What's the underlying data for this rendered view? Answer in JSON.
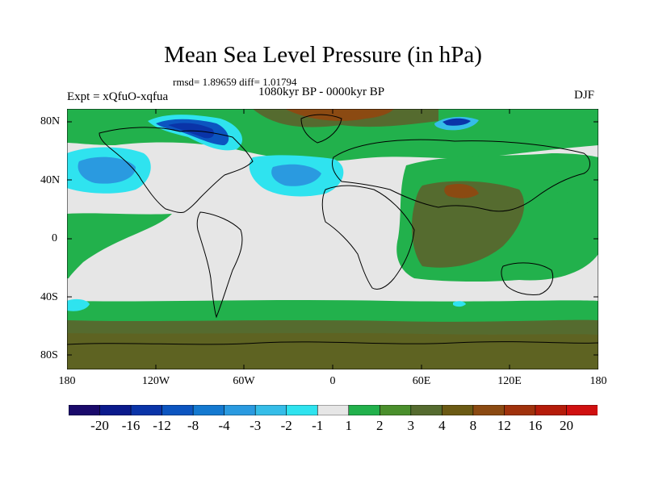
{
  "title": "Mean Sea Level Pressure (in hPa)",
  "stats": "rmsd= 1.89659 diff= 1.01794",
  "period": "1080kyr BP - 0000kyr BP",
  "experiment": "Expt = xQfuO-xqfua",
  "season": "DJF",
  "y_axis_labels": [
    "80N",
    "40N",
    "0",
    "40S",
    "80S"
  ],
  "x_axis_labels": [
    "180",
    "120W",
    "60W",
    "0",
    "60E",
    "120E",
    "180"
  ],
  "colorbar": {
    "colors": [
      "#1a0a6b",
      "#0b1a8c",
      "#0a34a8",
      "#0c55c0",
      "#1479d0",
      "#2a9ae0",
      "#35bde8",
      "#2fe3ef",
      "#e6e6e6",
      "#22b14c",
      "#4a8f2c",
      "#556b2f",
      "#6b5a14",
      "#8b4a12",
      "#a0320c",
      "#b51c0a",
      "#d01010"
    ],
    "labels": [
      "-20",
      "-16",
      "-12",
      "-8",
      "-4",
      "-3",
      "-2",
      "-1",
      "1",
      "2",
      "3",
      "4",
      "8",
      "12",
      "16",
      "20"
    ]
  },
  "chart_data": {
    "type": "heatmap",
    "title": "Mean Sea Level Pressure (in hPa)",
    "subtitle": "rmsd= 1.89659 diff= 1.01794",
    "variable": "Mean Sea Level Pressure difference (hPa)",
    "experiment": "Expt = xQfuO-xqfua",
    "season": "DJF",
    "period": "1080kyr BP - 0000kyr BP",
    "xlim": [
      -180,
      180
    ],
    "ylim": [
      -90,
      90
    ],
    "contour_levels": [
      -20,
      -16,
      -12,
      -8,
      -4,
      -3,
      -2,
      -1,
      1,
      2,
      3,
      4,
      8,
      12,
      16,
      20
    ],
    "features": [
      {
        "region": "North Pacific",
        "lon": -150,
        "lat": 40,
        "value": -3
      },
      {
        "region": "North Atlantic",
        "lon": -30,
        "lat": 38,
        "value": -2
      },
      {
        "region": "Canadian Arctic / Greenland",
        "lon": -85,
        "lat": 75,
        "value": -12
      },
      {
        "region": "Barents Sea",
        "lon": 40,
        "lat": 80,
        "value": -12
      },
      {
        "region": "Arctic Ocean",
        "lon": -20,
        "lat": 85,
        "value": 8
      },
      {
        "region": "Asia",
        "lon": 80,
        "lat": 40,
        "value": 8
      },
      {
        "region": "Indian Ocean",
        "lon": 80,
        "lat": -10,
        "value": 4
      },
      {
        "region": "Southern Ocean",
        "lon": 0,
        "lat": -65,
        "value": 4
      },
      {
        "region": "Antarctica",
        "lon": 60,
        "lat": -80,
        "value": 4
      }
    ]
  }
}
